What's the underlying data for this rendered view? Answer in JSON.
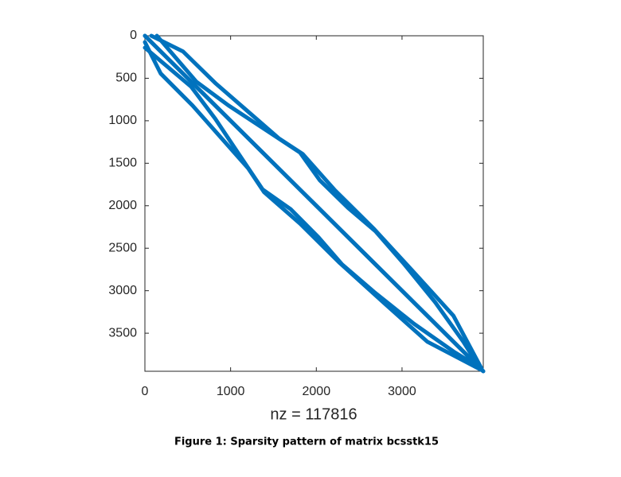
{
  "chart_data": {
    "type": "spy",
    "xlabel": "nz = 117816",
    "caption": "Figure 1: Sparsity pattern of matrix bcsstk15",
    "xlim": [
      0,
      3948
    ],
    "ylim": [
      0,
      3948
    ],
    "y_reversed": true,
    "xticks": [
      0,
      1000,
      2000,
      3000
    ],
    "yticks": [
      0,
      500,
      1000,
      1500,
      2000,
      2500,
      3000,
      3500
    ],
    "color": "#0072bd",
    "series": [
      {
        "color": "#0072bd",
        "x": [
          0,
          540,
          820,
          1095,
          1375,
          1700,
          2025,
          2300,
          2675,
          3140,
          3600,
          3930
        ],
        "y": [
          140,
          600,
          975,
          1390,
          1810,
          2040,
          2370,
          2690,
          3015,
          3390,
          3715,
          3920
        ]
      },
      {
        "color": "#0072bd",
        "x": [
          75,
          445,
          820,
          1190,
          1560,
          1840,
          2210,
          2675,
          3140,
          3600,
          3930
        ],
        "y": [
          0,
          185,
          555,
          880,
          1205,
          1390,
          1810,
          2275,
          2785,
          3295,
          3920
        ]
      },
      {
        "color": "#0072bd",
        "x": [
          0,
          3948
        ],
        "y": [
          0,
          3948
        ]
      }
    ]
  }
}
